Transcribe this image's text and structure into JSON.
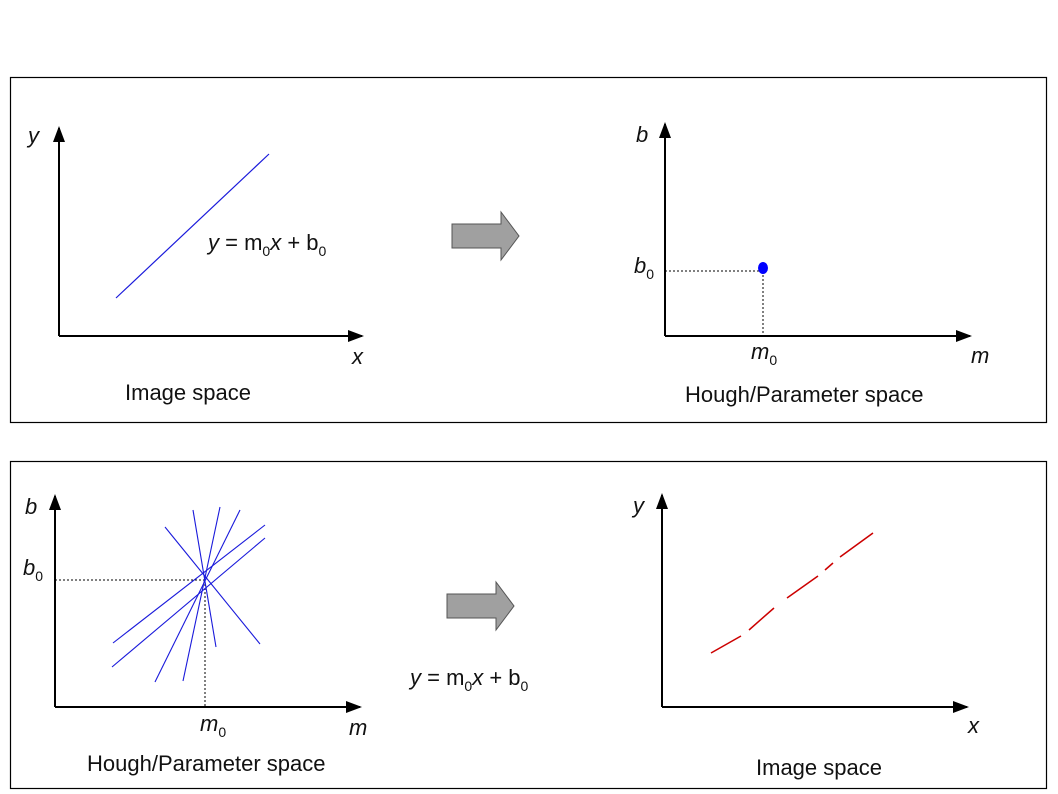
{
  "top_panel": {
    "left_graph": {
      "y_label": "y",
      "x_label": "x",
      "equation": {
        "y": "y",
        "eq": " = m",
        "sub0": "0",
        "x": "x",
        "plus": " + b",
        "sub1": "0"
      },
      "caption": "Image space"
    },
    "right_graph": {
      "y_label": "b",
      "x_label": "m",
      "b0_label": {
        "base": "b",
        "sub": "0"
      },
      "m0_label": {
        "base": "m",
        "sub": "0"
      },
      "caption": "Hough/Parameter space"
    }
  },
  "bottom_panel": {
    "left_graph": {
      "y_label": "b",
      "x_label": "m",
      "b0_label": {
        "base": "b",
        "sub": "0"
      },
      "m0_label": {
        "base": "m",
        "sub": "0"
      },
      "caption": "Hough/Parameter space"
    },
    "equation": {
      "y": "y",
      "eq": " = m",
      "sub0": "0",
      "x": "x",
      "plus": " + b",
      "sub1": "0"
    },
    "right_graph": {
      "y_label": "y",
      "x_label": "x",
      "caption": "Image space"
    }
  },
  "colors": {
    "border": "#000000",
    "blue_line": "#1a1adb",
    "red_dash": "#cc0000",
    "arrow_fill": "#a0a0a0",
    "point": "#0000ff"
  }
}
